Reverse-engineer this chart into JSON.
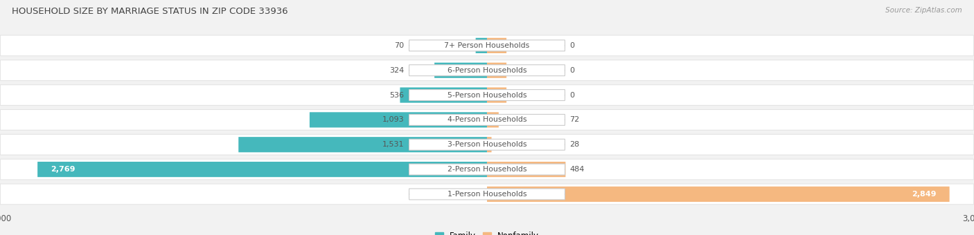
{
  "title": "HOUSEHOLD SIZE BY MARRIAGE STATUS IN ZIP CODE 33936",
  "source": "Source: ZipAtlas.com",
  "categories": [
    "7+ Person Households",
    "6-Person Households",
    "5-Person Households",
    "4-Person Households",
    "3-Person Households",
    "2-Person Households",
    "1-Person Households"
  ],
  "family_values": [
    70,
    324,
    536,
    1093,
    1531,
    2769,
    0
  ],
  "nonfamily_values": [
    0,
    0,
    0,
    72,
    28,
    484,
    2849
  ],
  "family_color": "#45B8BC",
  "nonfamily_color": "#F5B880",
  "axis_max": 3000,
  "background_color": "#f2f2f2",
  "row_bg_color": "#e4e4e4",
  "label_color": "#555555",
  "title_color": "#444444",
  "value_color": "#555555"
}
